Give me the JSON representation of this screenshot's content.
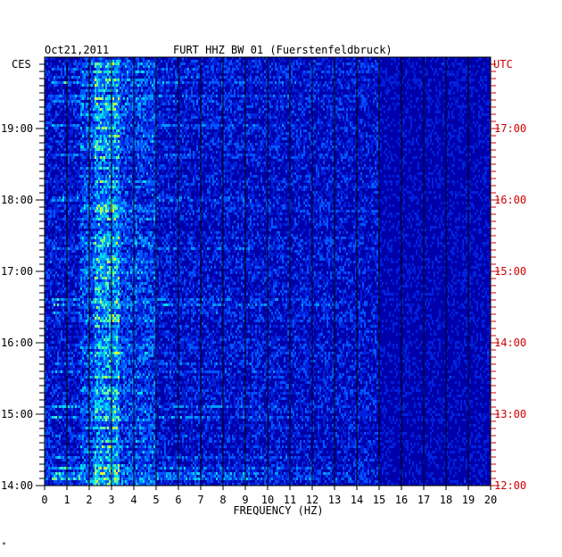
{
  "header": {
    "date": "Oct21,2011",
    "station": "FURT HHZ BW 01 (Fuerstenfeldbruck)",
    "left_zone": "CES",
    "right_zone": "UTC"
  },
  "footer": {
    "mark": "*"
  },
  "colors": {
    "background": "#0000aa",
    "left_labels": "#000000",
    "right_labels": "#cc0000",
    "frequency_lines": "#000000"
  },
  "chart_data": {
    "type": "heatmap",
    "title": "FURT HHZ BW 01 (Fuerstenfeldbruck)",
    "xlabel": "FREQUENCY (HZ)",
    "xlim": [
      0,
      20
    ],
    "x_ticks": [
      "0",
      "1",
      "2",
      "3",
      "4",
      "5",
      "6",
      "7",
      "8",
      "9",
      "10",
      "11",
      "12",
      "13",
      "14",
      "15",
      "16",
      "17",
      "18",
      "19",
      "20"
    ],
    "y_ticks_left": [
      {
        "hour": 19,
        "label": "19:00"
      },
      {
        "hour": 18,
        "label": "18:00"
      },
      {
        "hour": 17,
        "label": "17:00"
      },
      {
        "hour": 16,
        "label": "16:00"
      },
      {
        "hour": 15,
        "label": "15:00"
      },
      {
        "hour": 14,
        "label": "14:00"
      }
    ],
    "y_ticks_right": [
      {
        "hour": 19,
        "label": "17:00"
      },
      {
        "hour": 18,
        "label": "16:00"
      },
      {
        "hour": 17,
        "label": "15:00"
      },
      {
        "hour": 16,
        "label": "14:00"
      },
      {
        "hour": 15,
        "label": "13:00"
      },
      {
        "hour": 14,
        "label": "12:00"
      }
    ],
    "ylim_local_hours": [
      14.0,
      19.9
    ],
    "dominant_band_hz": [
      2.2,
      3.3
    ],
    "secondary_band_hz": [
      3.3,
      5.0
    ],
    "noise_extent_hz": 15.0,
    "grid": "vertical lines at each 1 Hz"
  }
}
